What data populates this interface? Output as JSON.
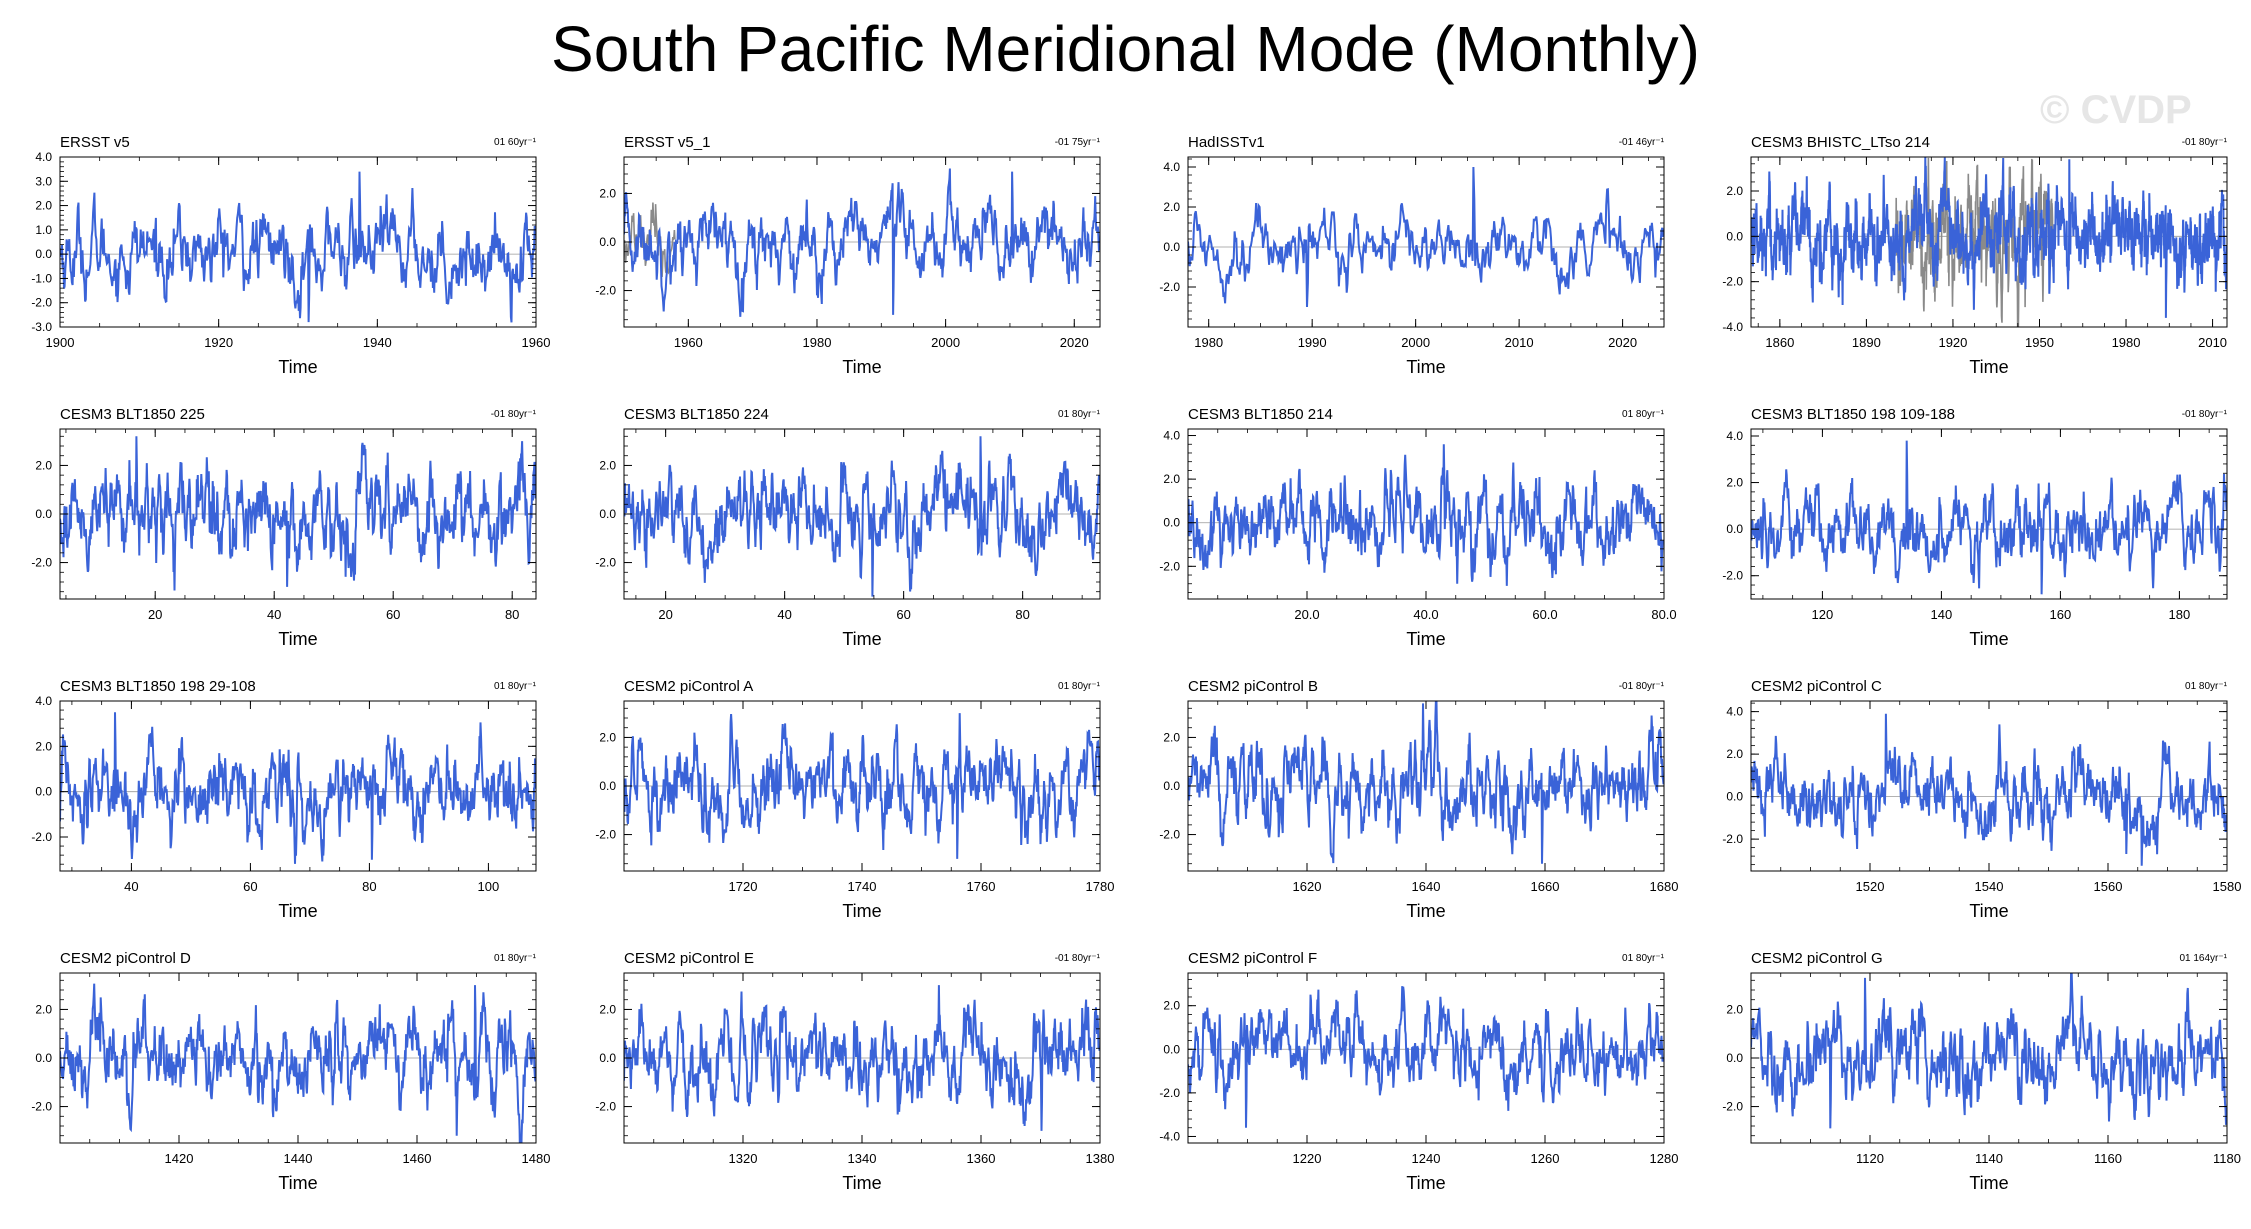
{
  "title": "South Pacific Meridional Mode (Monthly)",
  "watermark": "© CVDP",
  "colors": {
    "series": "#3a63d8",
    "overlay": "#8a8a8a",
    "axis": "#000000",
    "zero_line": "#999999"
  },
  "chart_data": [
    {
      "type": "line",
      "title": "ERSST v5",
      "trend": "01 60yr⁻¹",
      "xlabel": "Time",
      "xlim": [
        1900,
        1960
      ],
      "ylim": [
        -3.0,
        4.0
      ],
      "xticks": [
        1900,
        1920,
        1940,
        1960
      ],
      "xtick_labels": [
        "1900",
        "1920",
        "1940",
        "1960"
      ],
      "yticks": [
        -3.0,
        -2.0,
        -1.0,
        0.0,
        1.0,
        2.0,
        3.0,
        4.0
      ],
      "ytick_labels": [
        "-3.0",
        "-2.0",
        "-1.0",
        "0.0",
        "1.0",
        "2.0",
        "3.0",
        "4.0"
      ],
      "series": [
        {
          "amplitude": 0.9,
          "peak": 3.4,
          "trough": -2.8
        }
      ]
    },
    {
      "type": "line",
      "title": "ERSST v5_1",
      "trend": "-01 75yr⁻¹",
      "xlabel": "Time",
      "xlim": [
        1950,
        2024
      ],
      "ylim": [
        -3.5,
        3.5
      ],
      "xticks": [
        1960,
        1980,
        2000,
        2020
      ],
      "xtick_labels": [
        "1960",
        "1980",
        "2000",
        "2020"
      ],
      "yticks": [
        -2.0,
        0.0,
        2.0
      ],
      "ytick_labels": [
        "-2.0",
        "0.0",
        "2.0"
      ],
      "series": [
        {
          "amplitude": 0.9,
          "peak": 2.9,
          "trough": -3.0
        }
      ],
      "overlay": {
        "xlim": [
          1950,
          1958
        ],
        "amplitude": 0.6
      }
    },
    {
      "type": "line",
      "title": "HadISSTv1",
      "trend": "-01 46yr⁻¹",
      "xlabel": "Time",
      "xlim": [
        1978,
        2024
      ],
      "ylim": [
        -4.0,
        4.5
      ],
      "xticks": [
        1980,
        1990,
        2000,
        2010,
        2020
      ],
      "xtick_labels": [
        "1980",
        "1990",
        "2000",
        "2010",
        "2020"
      ],
      "yticks": [
        -2.0,
        0.0,
        2.0,
        4.0
      ],
      "ytick_labels": [
        "-2.0",
        "0.0",
        "2.0",
        "4.0"
      ],
      "series": [
        {
          "amplitude": 0.9,
          "peak": 4.0,
          "trough": -3.0
        }
      ]
    },
    {
      "type": "line",
      "title": "CESM3 BHISTC_LTso 214",
      "trend": "-01 80yr⁻¹",
      "xlabel": "Time",
      "xlim": [
        1850,
        2015
      ],
      "ylim": [
        -4.0,
        3.5
      ],
      "xticks": [
        1860,
        1890,
        1920,
        1950,
        1980,
        2010
      ],
      "xtick_labels": [
        "1860",
        "1890",
        "1920",
        "1950",
        "1980",
        "2010"
      ],
      "yticks": [
        -4.0,
        -2.0,
        0.0,
        2.0
      ],
      "ytick_labels": [
        "-4.0",
        "-2.0",
        "0.0",
        "2.0"
      ],
      "series": [
        {
          "amplitude": 1.0,
          "peak": 3.4,
          "trough": -3.6
        }
      ],
      "overlay": {
        "xlim": [
          1900,
          1955
        ],
        "amplitude": 1.3
      }
    },
    {
      "type": "line",
      "title": "CESM3 BLT1850 225",
      "trend": "-01 80yr⁻¹",
      "xlabel": "Time",
      "xlim": [
        4,
        84
      ],
      "ylim": [
        -3.5,
        3.5
      ],
      "xticks": [
        20,
        40,
        60,
        80
      ],
      "xtick_labels": [
        "20",
        "40",
        "60",
        "80"
      ],
      "yticks": [
        -2.0,
        0.0,
        2.0
      ],
      "ytick_labels": [
        "-2.0",
        "0.0",
        "2.0"
      ],
      "series": [
        {
          "amplitude": 1.0,
          "peak": 3.2,
          "trough": -3.0
        }
      ]
    },
    {
      "type": "line",
      "title": "CESM3 BLT1850 224",
      "trend": "01 80yr⁻¹",
      "xlabel": "Time",
      "xlim": [
        13,
        93
      ],
      "ylim": [
        -3.5,
        3.5
      ],
      "xticks": [
        20,
        40,
        60,
        80
      ],
      "xtick_labels": [
        "20",
        "40",
        "60",
        "80"
      ],
      "yticks": [
        -2.0,
        0.0,
        2.0
      ],
      "ytick_labels": [
        "-2.0",
        "0.0",
        "2.0"
      ],
      "series": [
        {
          "amplitude": 1.0,
          "peak": 3.2,
          "trough": -3.4
        }
      ]
    },
    {
      "type": "line",
      "title": "CESM3 BLT1850 214",
      "trend": "01 80yr⁻¹",
      "xlabel": "Time",
      "xlim": [
        0,
        80
      ],
      "ylim": [
        -3.5,
        4.3
      ],
      "xticks": [
        20,
        40,
        60,
        80
      ],
      "xtick_labels": [
        "20.0",
        "40.0",
        "60.0",
        "80.0"
      ],
      "yticks": [
        -2.0,
        0.0,
        2.0,
        4.0
      ],
      "ytick_labels": [
        "-2.0",
        "0.0",
        "2.0",
        "4.0"
      ],
      "series": [
        {
          "amplitude": 1.0,
          "peak": 3.6,
          "trough": -2.8
        }
      ]
    },
    {
      "type": "line",
      "title": "CESM3 BLT1850 198 109-188",
      "trend": "-01 80yr⁻¹",
      "xlabel": "Time",
      "xlim": [
        108,
        188
      ],
      "ylim": [
        -3.0,
        4.3
      ],
      "xticks": [
        120,
        140,
        160,
        180
      ],
      "xtick_labels": [
        "120",
        "140",
        "160",
        "180"
      ],
      "yticks": [
        -2.0,
        0.0,
        2.0,
        4.0
      ],
      "ytick_labels": [
        "-2.0",
        "0.0",
        "2.0",
        "4.0"
      ],
      "series": [
        {
          "amplitude": 0.9,
          "peak": 3.8,
          "trough": -2.8
        }
      ]
    },
    {
      "type": "line",
      "title": "CESM3 BLT1850 198 29-108",
      "trend": "01 80yr⁻¹",
      "xlabel": "Time",
      "xlim": [
        28,
        108
      ],
      "ylim": [
        -3.5,
        4.0
      ],
      "xticks": [
        40,
        60,
        80,
        100
      ],
      "xtick_labels": [
        "40",
        "60",
        "80",
        "100"
      ],
      "yticks": [
        -2.0,
        0.0,
        2.0,
        4.0
      ],
      "ytick_labels": [
        "-2.0",
        "0.0",
        "2.0",
        "4.0"
      ],
      "series": [
        {
          "amplitude": 1.0,
          "peak": 3.5,
          "trough": -3.0
        }
      ]
    },
    {
      "type": "line",
      "title": "CESM2 piControl A",
      "trend": "01 80yr⁻¹",
      "xlabel": "Time",
      "xlim": [
        1700,
        1780
      ],
      "ylim": [
        -3.5,
        3.5
      ],
      "xticks": [
        1720,
        1740,
        1760,
        1780
      ],
      "xtick_labels": [
        "1720",
        "1740",
        "1760",
        "1780"
      ],
      "yticks": [
        -2.0,
        0.0,
        2.0
      ],
      "ytick_labels": [
        "-2.0",
        "0.0",
        "2.0"
      ],
      "series": [
        {
          "amplitude": 1.0,
          "peak": 3.0,
          "trough": -3.0
        }
      ]
    },
    {
      "type": "line",
      "title": "CESM2 piControl B",
      "trend": "-01 80yr⁻¹",
      "xlabel": "Time",
      "xlim": [
        1600,
        1680
      ],
      "ylim": [
        -3.5,
        3.5
      ],
      "xticks": [
        1620,
        1640,
        1660,
        1680
      ],
      "xtick_labels": [
        "1620",
        "1640",
        "1660",
        "1680"
      ],
      "yticks": [
        -2.0,
        0.0,
        2.0
      ],
      "ytick_labels": [
        "-2.0",
        "0.0",
        "2.0"
      ],
      "series": [
        {
          "amplitude": 1.0,
          "peak": 3.4,
          "trough": -3.2
        }
      ]
    },
    {
      "type": "line",
      "title": "CESM2 piControl C",
      "trend": "01 80yr⁻¹",
      "xlabel": "Time",
      "xlim": [
        1500,
        1580
      ],
      "ylim": [
        -3.5,
        4.5
      ],
      "xticks": [
        1520,
        1540,
        1560,
        1580
      ],
      "xtick_labels": [
        "1520",
        "1540",
        "1560",
        "1580"
      ],
      "yticks": [
        -2.0,
        0.0,
        2.0,
        4.0
      ],
      "ytick_labels": [
        "-2.0",
        "0.0",
        "2.0",
        "4.0"
      ],
      "series": [
        {
          "amplitude": 1.0,
          "peak": 3.9,
          "trough": -2.7
        }
      ]
    },
    {
      "type": "line",
      "title": "CESM2 piControl D",
      "trend": "01 80yr⁻¹",
      "xlabel": "Time",
      "xlim": [
        1400,
        1480
      ],
      "ylim": [
        -3.5,
        3.5
      ],
      "xticks": [
        1420,
        1440,
        1460,
        1480
      ],
      "xtick_labels": [
        "1420",
        "1440",
        "1460",
        "1480"
      ],
      "yticks": [
        -2.0,
        0.0,
        2.0
      ],
      "ytick_labels": [
        "-2.0",
        "0.0",
        "2.0"
      ],
      "series": [
        {
          "amplitude": 1.0,
          "peak": 3.0,
          "trough": -3.2
        }
      ]
    },
    {
      "type": "line",
      "title": "CESM2 piControl E",
      "trend": "-01 80yr⁻¹",
      "xlabel": "Time",
      "xlim": [
        1300,
        1380
      ],
      "ylim": [
        -3.5,
        3.5
      ],
      "xticks": [
        1320,
        1340,
        1360,
        1380
      ],
      "xtick_labels": [
        "1320",
        "1340",
        "1360",
        "1380"
      ],
      "yticks": [
        -2.0,
        0.0,
        2.0
      ],
      "ytick_labels": [
        "-2.0",
        "0.0",
        "2.0"
      ],
      "series": [
        {
          "amplitude": 1.0,
          "peak": 3.0,
          "trough": -3.0
        }
      ]
    },
    {
      "type": "line",
      "title": "CESM2 piControl F",
      "trend": "01 80yr⁻¹",
      "xlabel": "Time",
      "xlim": [
        1200,
        1280
      ],
      "ylim": [
        -4.3,
        3.5
      ],
      "xticks": [
        1220,
        1240,
        1260,
        1280
      ],
      "xtick_labels": [
        "1220",
        "1240",
        "1260",
        "1280"
      ],
      "yticks": [
        -4.0,
        -2.0,
        0.0,
        2.0
      ],
      "ytick_labels": [
        "-4.0",
        "-2.0",
        "0.0",
        "2.0"
      ],
      "series": [
        {
          "amplitude": 1.0,
          "peak": 2.9,
          "trough": -3.6
        }
      ]
    },
    {
      "type": "line",
      "title": "CESM2 piControl G",
      "trend": "01 164yr⁻¹",
      "xlabel": "Time",
      "xlim": [
        1100,
        1180
      ],
      "ylim": [
        -3.5,
        3.5
      ],
      "xticks": [
        1120,
        1140,
        1160,
        1180
      ],
      "xtick_labels": [
        "1120",
        "1140",
        "1160",
        "1180"
      ],
      "yticks": [
        -2.0,
        0.0,
        2.0
      ],
      "ytick_labels": [
        "-2.0",
        "0.0",
        "2.0"
      ],
      "series": [
        {
          "amplitude": 1.0,
          "peak": 3.3,
          "trough": -2.9
        }
      ]
    }
  ]
}
